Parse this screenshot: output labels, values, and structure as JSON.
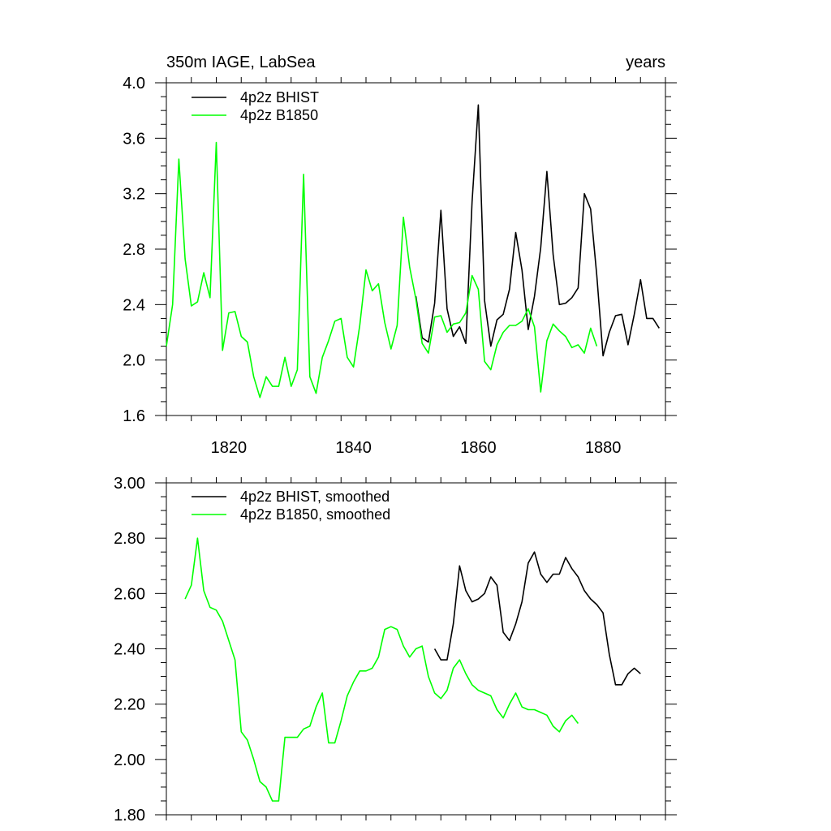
{
  "chart_data": [
    {
      "type": "line",
      "title_left": "350m IAGE, LabSea",
      "title_right": "years",
      "xlim": [
        1810,
        1890
      ],
      "ylim": [
        1.6,
        4.0
      ],
      "x_ticks": [
        1820,
        1840,
        1860,
        1880
      ],
      "x_tick_labels": [
        "1820",
        "1840",
        "1860",
        "1880"
      ],
      "y_ticks": [
        1.6,
        2.0,
        2.4,
        2.8,
        3.2,
        3.6,
        4.0
      ],
      "y_tick_labels": [
        "1.6",
        "2.0",
        "2.4",
        "2.8",
        "3.2",
        "3.6",
        "4.0"
      ],
      "legend_position": "top-left",
      "series": [
        {
          "name": "4p2z BHIST",
          "color": "#000000",
          "x": [
            1850,
            1851,
            1852,
            1853,
            1854,
            1855,
            1856,
            1857,
            1858,
            1859,
            1860,
            1861,
            1862,
            1863,
            1864,
            1865,
            1866,
            1867,
            1868,
            1869,
            1870,
            1871,
            1872,
            1873,
            1874,
            1875,
            1876,
            1877,
            1878,
            1879,
            1880,
            1881,
            1882,
            1883,
            1884,
            1885,
            1886,
            1887,
            1888,
            1889
          ],
          "values": [
            2.46,
            2.16,
            2.13,
            2.41,
            3.08,
            2.37,
            2.17,
            2.24,
            2.12,
            3.14,
            3.84,
            2.43,
            2.1,
            2.29,
            2.33,
            2.51,
            2.92,
            2.65,
            2.22,
            2.46,
            2.81,
            3.36,
            2.76,
            2.4,
            2.41,
            2.45,
            2.52,
            3.2,
            3.09,
            2.61,
            2.03,
            2.2,
            2.32,
            2.33,
            2.11,
            2.33,
            2.58,
            2.3,
            2.3,
            2.23
          ]
        },
        {
          "name": "4p2z B1850",
          "color": "#00ff00",
          "x": [
            1810,
            1811,
            1812,
            1813,
            1814,
            1815,
            1816,
            1817,
            1818,
            1819,
            1820,
            1821,
            1822,
            1823,
            1824,
            1825,
            1826,
            1827,
            1828,
            1829,
            1830,
            1831,
            1832,
            1833,
            1834,
            1835,
            1836,
            1837,
            1838,
            1839,
            1840,
            1841,
            1842,
            1843,
            1844,
            1845,
            1846,
            1847,
            1848,
            1849,
            1850,
            1851,
            1852,
            1853,
            1854,
            1855,
            1856,
            1857,
            1858,
            1859,
            1860,
            1861,
            1862,
            1863,
            1864,
            1865,
            1866,
            1867,
            1868,
            1869,
            1870,
            1871,
            1872,
            1873,
            1874,
            1875,
            1876,
            1877,
            1878,
            1879
          ],
          "values": [
            2.1,
            2.4,
            3.45,
            2.73,
            2.39,
            2.42,
            2.63,
            2.45,
            3.57,
            2.07,
            2.34,
            2.35,
            2.17,
            2.13,
            1.88,
            1.73,
            1.88,
            1.81,
            1.81,
            2.02,
            1.81,
            1.93,
            3.34,
            1.88,
            1.76,
            2.02,
            2.14,
            2.28,
            2.3,
            2.02,
            1.95,
            2.25,
            2.65,
            2.5,
            2.55,
            2.27,
            2.08,
            2.25,
            3.03,
            2.67,
            2.44,
            2.12,
            2.05,
            2.31,
            2.32,
            2.2,
            2.26,
            2.27,
            2.34,
            2.61,
            2.51,
            1.99,
            1.93,
            2.11,
            2.2,
            2.25,
            2.25,
            2.28,
            2.37,
            2.24,
            1.77,
            2.14,
            2.26,
            2.21,
            2.17,
            2.09,
            2.11,
            2.05,
            2.23,
            2.1
          ]
        }
      ]
    },
    {
      "type": "line",
      "xlim": [
        1810,
        1890
      ],
      "ylim": [
        1.8,
        3.0
      ],
      "x_ticks": [
        1820,
        1840,
        1860,
        1880
      ],
      "y_ticks": [
        1.8,
        2.0,
        2.2,
        2.4,
        2.6,
        2.8,
        3.0
      ],
      "y_tick_labels": [
        "1.80",
        "2.00",
        "2.20",
        "2.40",
        "2.60",
        "2.80",
        "3.00"
      ],
      "legend_position": "top-left",
      "series": [
        {
          "name": "4p2z BHIST, smoothed",
          "color": "#000000",
          "x": [
            1853,
            1854,
            1855,
            1856,
            1857,
            1858,
            1859,
            1860,
            1861,
            1862,
            1863,
            1864,
            1865,
            1866,
            1867,
            1868,
            1869,
            1870,
            1871,
            1872,
            1873,
            1874,
            1875,
            1876,
            1877,
            1878,
            1879,
            1880,
            1881,
            1882,
            1883,
            1884,
            1885,
            1886
          ],
          "values": [
            2.4,
            2.36,
            2.36,
            2.49,
            2.7,
            2.61,
            2.57,
            2.58,
            2.6,
            2.66,
            2.63,
            2.46,
            2.43,
            2.49,
            2.57,
            2.71,
            2.75,
            2.67,
            2.64,
            2.67,
            2.67,
            2.73,
            2.69,
            2.66,
            2.61,
            2.58,
            2.56,
            2.53,
            2.38,
            2.27,
            2.27,
            2.31,
            2.33,
            2.31
          ]
        },
        {
          "name": "4p2z B1850, smoothed",
          "color": "#00ff00",
          "x": [
            1813,
            1814,
            1815,
            1816,
            1817,
            1818,
            1819,
            1820,
            1821,
            1822,
            1823,
            1824,
            1825,
            1826,
            1827,
            1828,
            1829,
            1830,
            1831,
            1832,
            1833,
            1834,
            1835,
            1836,
            1837,
            1838,
            1839,
            1840,
            1841,
            1842,
            1843,
            1844,
            1845,
            1846,
            1847,
            1848,
            1849,
            1850,
            1851,
            1852,
            1853,
            1854,
            1855,
            1856,
            1857,
            1858,
            1859,
            1860,
            1861,
            1862,
            1863,
            1864,
            1865,
            1866,
            1867,
            1868,
            1869,
            1870,
            1871,
            1872,
            1873,
            1874,
            1875,
            1876
          ],
          "values": [
            2.58,
            2.63,
            2.8,
            2.61,
            2.55,
            2.54,
            2.5,
            2.43,
            2.36,
            2.1,
            2.07,
            2.0,
            1.92,
            1.9,
            1.85,
            1.85,
            2.08,
            2.08,
            2.08,
            2.11,
            2.12,
            2.19,
            2.24,
            2.06,
            2.06,
            2.14,
            2.23,
            2.28,
            2.32,
            2.32,
            2.33,
            2.37,
            2.47,
            2.48,
            2.47,
            2.41,
            2.37,
            2.4,
            2.41,
            2.3,
            2.24,
            2.22,
            2.25,
            2.33,
            2.36,
            2.31,
            2.27,
            2.25,
            2.24,
            2.23,
            2.18,
            2.15,
            2.2,
            2.24,
            2.19,
            2.18,
            2.18,
            2.17,
            2.16,
            2.12,
            2.1,
            2.14,
            2.16,
            2.13
          ]
        }
      ]
    }
  ]
}
